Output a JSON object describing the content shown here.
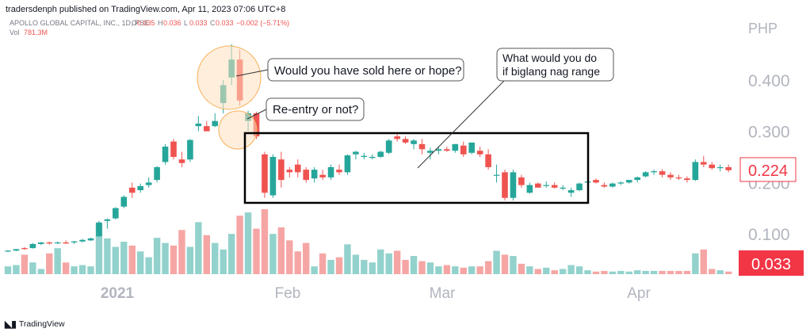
{
  "header": {
    "published_by": "tradersdenph published on TradingView.com, Apr 11, 2023 07:06 UTC+8"
  },
  "legend": {
    "symbol": "APOLLO GLOBAL CAPITAL, INC., 1D, PSE",
    "o_label": "O",
    "o_value": "0.035",
    "h_label": "H",
    "h_value": "0.036",
    "l_label": "L",
    "l_value": "0.033",
    "c_label": "C",
    "c_value": "0.033",
    "change": "−0.002 (−5.71%)",
    "vol_label": "Vol",
    "vol_value": "781.3M"
  },
  "annotations": {
    "sold_or_hope": "Would you have sold here or hope?",
    "reentry": "Re-entry or not?",
    "range_q_line1": "What would you do",
    "range_q_line2": "if biglang nag range"
  },
  "footer": {
    "brand": "TradingView"
  },
  "colors": {
    "up": "#26a69a",
    "down": "#ef5350",
    "up_volume": "#93d2cc",
    "down_volume": "#f5a6a4",
    "axis_text": "#b2b5be",
    "price_label": "#f23645",
    "circle_fill": "#ffe0bf",
    "circle_stroke": "#f7b05b"
  },
  "chart_data": {
    "type": "candlestick",
    "currency": "PHP",
    "y_ticks": [
      "0.400",
      "0.300",
      "0.200",
      "0.100"
    ],
    "x_ticks": [
      "2021",
      "Feb",
      "Mar",
      "Apr"
    ],
    "last_price_label": "0.224",
    "current_candle_label": "0.033",
    "candles": [
      {
        "o": 0.066,
        "h": 0.068,
        "l": 0.064,
        "c": 0.067
      },
      {
        "o": 0.067,
        "h": 0.07,
        "l": 0.066,
        "c": 0.07
      },
      {
        "o": 0.072,
        "h": 0.074,
        "l": 0.069,
        "c": 0.07
      },
      {
        "o": 0.072,
        "h": 0.082,
        "l": 0.071,
        "c": 0.08
      },
      {
        "o": 0.08,
        "h": 0.084,
        "l": 0.078,
        "c": 0.083
      },
      {
        "o": 0.083,
        "h": 0.085,
        "l": 0.079,
        "c": 0.081
      },
      {
        "o": 0.082,
        "h": 0.085,
        "l": 0.08,
        "c": 0.083
      },
      {
        "o": 0.083,
        "h": 0.087,
        "l": 0.08,
        "c": 0.081
      },
      {
        "o": 0.083,
        "h": 0.086,
        "l": 0.08,
        "c": 0.085
      },
      {
        "o": 0.085,
        "h": 0.09,
        "l": 0.083,
        "c": 0.088
      },
      {
        "o": 0.087,
        "h": 0.092,
        "l": 0.086,
        "c": 0.091
      },
      {
        "o": 0.095,
        "h": 0.125,
        "l": 0.094,
        "c": 0.122
      },
      {
        "o": 0.125,
        "h": 0.13,
        "l": 0.11,
        "c": 0.128
      },
      {
        "o": 0.13,
        "h": 0.152,
        "l": 0.128,
        "c": 0.15
      },
      {
        "o": 0.153,
        "h": 0.175,
        "l": 0.15,
        "c": 0.172
      },
      {
        "o": 0.19,
        "h": 0.2,
        "l": 0.17,
        "c": 0.18
      },
      {
        "o": 0.185,
        "h": 0.198,
        "l": 0.18,
        "c": 0.193
      },
      {
        "o": 0.195,
        "h": 0.21,
        "l": 0.19,
        "c": 0.2
      },
      {
        "o": 0.205,
        "h": 0.232,
        "l": 0.2,
        "c": 0.23
      },
      {
        "o": 0.24,
        "h": 0.275,
        "l": 0.235,
        "c": 0.27
      },
      {
        "o": 0.28,
        "h": 0.285,
        "l": 0.245,
        "c": 0.25
      },
      {
        "o": 0.245,
        "h": 0.26,
        "l": 0.23,
        "c": 0.238
      },
      {
        "o": 0.245,
        "h": 0.285,
        "l": 0.24,
        "c": 0.283
      },
      {
        "o": 0.31,
        "h": 0.33,
        "l": 0.3,
        "c": 0.315
      },
      {
        "o": 0.31,
        "h": 0.32,
        "l": 0.3,
        "c": 0.3
      },
      {
        "o": 0.31,
        "h": 0.335,
        "l": 0.308,
        "c": 0.32
      },
      {
        "o": 0.355,
        "h": 0.4,
        "l": 0.335,
        "c": 0.39
      },
      {
        "o": 0.405,
        "h": 0.47,
        "l": 0.39,
        "c": 0.44
      },
      {
        "o": 0.44,
        "h": 0.46,
        "l": 0.35,
        "c": 0.36
      },
      {
        "o": 0.32,
        "h": 0.34,
        "l": 0.3,
        "c": 0.335
      },
      {
        "o": 0.335,
        "h": 0.338,
        "l": 0.285,
        "c": 0.29
      },
      {
        "o": 0.255,
        "h": 0.26,
        "l": 0.17,
        "c": 0.18
      },
      {
        "o": 0.175,
        "h": 0.255,
        "l": 0.17,
        "c": 0.25
      },
      {
        "o": 0.245,
        "h": 0.26,
        "l": 0.19,
        "c": 0.205
      },
      {
        "o": 0.225,
        "h": 0.23,
        "l": 0.21,
        "c": 0.22
      },
      {
        "o": 0.235,
        "h": 0.245,
        "l": 0.21,
        "c": 0.22
      },
      {
        "o": 0.225,
        "h": 0.23,
        "l": 0.2,
        "c": 0.205
      },
      {
        "o": 0.208,
        "h": 0.23,
        "l": 0.2,
        "c": 0.225
      },
      {
        "o": 0.215,
        "h": 0.225,
        "l": 0.205,
        "c": 0.21
      },
      {
        "o": 0.21,
        "h": 0.235,
        "l": 0.205,
        "c": 0.23
      },
      {
        "o": 0.225,
        "h": 0.235,
        "l": 0.215,
        "c": 0.22
      },
      {
        "o": 0.22,
        "h": 0.255,
        "l": 0.215,
        "c": 0.253
      },
      {
        "o": 0.255,
        "h": 0.262,
        "l": 0.245,
        "c": 0.26
      },
      {
        "o": 0.25,
        "h": 0.258,
        "l": 0.245,
        "c": 0.252
      },
      {
        "o": 0.248,
        "h": 0.255,
        "l": 0.245,
        "c": 0.25
      },
      {
        "o": 0.25,
        "h": 0.262,
        "l": 0.248,
        "c": 0.26
      },
      {
        "o": 0.258,
        "h": 0.285,
        "l": 0.255,
        "c": 0.282
      },
      {
        "o": 0.29,
        "h": 0.295,
        "l": 0.28,
        "c": 0.285
      },
      {
        "o": 0.285,
        "h": 0.29,
        "l": 0.275,
        "c": 0.278
      },
      {
        "o": 0.275,
        "h": 0.285,
        "l": 0.265,
        "c": 0.282
      },
      {
        "o": 0.275,
        "h": 0.285,
        "l": 0.255,
        "c": 0.265
      },
      {
        "o": 0.258,
        "h": 0.268,
        "l": 0.245,
        "c": 0.262
      },
      {
        "o": 0.262,
        "h": 0.27,
        "l": 0.255,
        "c": 0.265
      },
      {
        "o": 0.265,
        "h": 0.27,
        "l": 0.26,
        "c": 0.262
      },
      {
        "o": 0.262,
        "h": 0.275,
        "l": 0.258,
        "c": 0.275
      },
      {
        "o": 0.272,
        "h": 0.28,
        "l": 0.25,
        "c": 0.255
      },
      {
        "o": 0.258,
        "h": 0.278,
        "l": 0.255,
        "c": 0.278
      },
      {
        "o": 0.262,
        "h": 0.27,
        "l": 0.25,
        "c": 0.255
      },
      {
        "o": 0.255,
        "h": 0.265,
        "l": 0.225,
        "c": 0.23
      },
      {
        "o": 0.215,
        "h": 0.235,
        "l": 0.2,
        "c": 0.215
      },
      {
        "o": 0.22,
        "h": 0.225,
        "l": 0.165,
        "c": 0.17
      },
      {
        "o": 0.17,
        "h": 0.225,
        "l": 0.165,
        "c": 0.22
      },
      {
        "o": 0.21,
        "h": 0.215,
        "l": 0.19,
        "c": 0.195
      },
      {
        "o": 0.18,
        "h": 0.2,
        "l": 0.178,
        "c": 0.195
      },
      {
        "o": 0.198,
        "h": 0.2,
        "l": 0.19,
        "c": 0.19
      },
      {
        "o": 0.195,
        "h": 0.202,
        "l": 0.19,
        "c": 0.195
      },
      {
        "o": 0.195,
        "h": 0.2,
        "l": 0.188,
        "c": 0.19
      },
      {
        "o": 0.19,
        "h": 0.195,
        "l": 0.185,
        "c": 0.19
      },
      {
        "o": 0.18,
        "h": 0.19,
        "l": 0.172,
        "c": 0.185
      },
      {
        "o": 0.185,
        "h": 0.2,
        "l": 0.183,
        "c": 0.198
      },
      {
        "o": 0.2,
        "h": 0.205,
        "l": 0.195,
        "c": 0.202
      },
      {
        "o": 0.205,
        "h": 0.208,
        "l": 0.198,
        "c": 0.2
      },
      {
        "o": 0.195,
        "h": 0.2,
        "l": 0.19,
        "c": 0.192
      },
      {
        "o": 0.192,
        "h": 0.2,
        "l": 0.19,
        "c": 0.198
      },
      {
        "o": 0.198,
        "h": 0.202,
        "l": 0.195,
        "c": 0.2
      },
      {
        "o": 0.2,
        "h": 0.205,
        "l": 0.198,
        "c": 0.205
      },
      {
        "o": 0.205,
        "h": 0.212,
        "l": 0.2,
        "c": 0.21
      },
      {
        "o": 0.212,
        "h": 0.222,
        "l": 0.21,
        "c": 0.22
      },
      {
        "o": 0.22,
        "h": 0.225,
        "l": 0.215,
        "c": 0.222
      },
      {
        "o": 0.222,
        "h": 0.226,
        "l": 0.21,
        "c": 0.215
      },
      {
        "o": 0.215,
        "h": 0.22,
        "l": 0.205,
        "c": 0.21
      },
      {
        "o": 0.21,
        "h": 0.215,
        "l": 0.205,
        "c": 0.208
      },
      {
        "o": 0.208,
        "h": 0.212,
        "l": 0.2,
        "c": 0.205
      },
      {
        "o": 0.205,
        "h": 0.245,
        "l": 0.203,
        "c": 0.24
      },
      {
        "o": 0.24,
        "h": 0.252,
        "l": 0.23,
        "c": 0.235
      },
      {
        "o": 0.235,
        "h": 0.24,
        "l": 0.225,
        "c": 0.228
      },
      {
        "o": 0.228,
        "h": 0.235,
        "l": 0.222,
        "c": 0.23
      },
      {
        "o": 0.23,
        "h": 0.235,
        "l": 0.22,
        "c": 0.224
      }
    ],
    "volume_relative": [
      0.12,
      0.14,
      0.3,
      0.18,
      0.08,
      0.32,
      0.4,
      0.18,
      0.12,
      0.14,
      0.12,
      0.78,
      0.55,
      0.42,
      0.5,
      0.44,
      0.35,
      0.26,
      0.56,
      0.48,
      0.44,
      0.68,
      0.42,
      0.8,
      0.6,
      0.48,
      0.38,
      0.62,
      0.9,
      0.95,
      0.7,
      1.0,
      0.62,
      0.72,
      0.52,
      0.35,
      0.48,
      0.12,
      0.32,
      0.22,
      0.26,
      0.46,
      0.3,
      0.22,
      0.18,
      0.38,
      0.32,
      0.36,
      0.22,
      0.28,
      0.2,
      0.18,
      0.12,
      0.14,
      0.12,
      0.1,
      0.12,
      0.12,
      0.2,
      0.36,
      0.3,
      0.28,
      0.16,
      0.12,
      0.08,
      0.1,
      0.06,
      0.08,
      0.14,
      0.12,
      0.06,
      0.04,
      0.05,
      0.04,
      0.05,
      0.04,
      0.06,
      0.05,
      0.05,
      0.05,
      0.05,
      0.05,
      0.05,
      0.32,
      0.38,
      0.08,
      0.06,
      0.04
    ],
    "grid": false
  }
}
